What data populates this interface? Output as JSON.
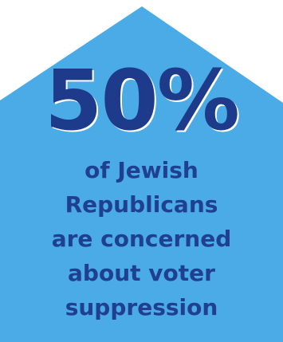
{
  "infographic": {
    "statistic": "50%",
    "caption_lines": [
      "of Jewish",
      "Republicans",
      "are concerned",
      "about voter",
      "suppression"
    ]
  },
  "colors": {
    "house_fill": "#4aabe6",
    "statistic_text": "#1e3a8a",
    "caption_text": "#1f3f8f",
    "background": "#ffffff"
  }
}
